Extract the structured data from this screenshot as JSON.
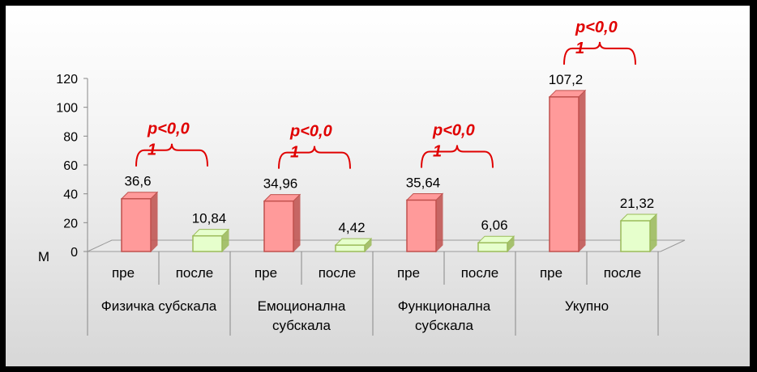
{
  "chart_data": {
    "type": "bar",
    "ylabel": "M",
    "ylim": [
      0,
      120
    ],
    "yticks": [
      "0",
      "20",
      "40",
      "60",
      "80",
      "100",
      "120"
    ],
    "groups": [
      {
        "name": [
          "Физичка субскала"
        ],
        "sub": [
          "пре",
          "после"
        ],
        "values": [
          36.6,
          10.84
        ],
        "labels": [
          "36,6",
          "10,84"
        ],
        "sig": [
          "p<0,0",
          "1"
        ]
      },
      {
        "name": [
          "Емоционална",
          "субскала"
        ],
        "sub": [
          "пре",
          "после"
        ],
        "values": [
          34.96,
          4.42
        ],
        "labels": [
          "34,96",
          "4,42"
        ],
        "sig": [
          "p<0,0",
          "1"
        ]
      },
      {
        "name": [
          "Функционална",
          "субскала"
        ],
        "sub": [
          "пре",
          "после"
        ],
        "values": [
          35.64,
          6.06
        ],
        "labels": [
          "35,64",
          "6,06"
        ],
        "sig": [
          "p<0,0",
          "1"
        ]
      },
      {
        "name": [
          "Укупно"
        ],
        "sub": [
          "пре",
          "после"
        ],
        "values": [
          107.2,
          21.32
        ],
        "labels": [
          "107,2",
          "21,32"
        ],
        "sig": [
          "p<0,0",
          "1"
        ]
      }
    ],
    "colors": {
      "pre": "#ff9a9a",
      "post": "#e6ffcc",
      "pre_edge": "#c0504d",
      "post_edge": "#9bbb59",
      "sig": "#e00000"
    }
  }
}
